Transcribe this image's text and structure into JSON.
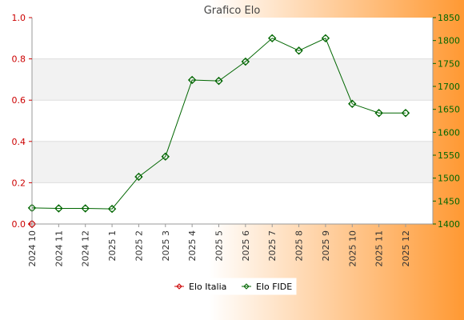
{
  "colors": {
    "left_axis": "#cc0000",
    "right_axis": "#006600",
    "background_left": "#ffffff",
    "background_right": "#ff9933",
    "band": "#f2f2f2"
  },
  "chart_data": {
    "type": "line",
    "title": "Grafico Elo",
    "categories": [
      "2024 10",
      "2024 11",
      "2024 12",
      "2025 1",
      "2025 2",
      "2025 3",
      "2025 4",
      "2025 5",
      "2025 6",
      "2025 7",
      "2025 8",
      "2025 9",
      "2025 10",
      "2025 11",
      "2025 12"
    ],
    "y_left": {
      "ticks": [
        "0.0",
        "0.2",
        "0.4",
        "0.6",
        "0.8",
        "1.0"
      ],
      "range": [
        0,
        1
      ]
    },
    "y_right": {
      "ticks": [
        "1400",
        "1450",
        "1500",
        "1550",
        "1600",
        "1650",
        "1700",
        "1750",
        "1800",
        "1850"
      ],
      "range": [
        1400,
        1850
      ]
    },
    "grid": "horizontal alternating bands",
    "legend_position": "bottom",
    "series": [
      {
        "name": "Elo Italia",
        "axis": "left",
        "color": "#cc0000",
        "values": [
          0,
          null,
          null,
          null,
          null,
          null,
          null,
          null,
          null,
          null,
          null,
          null,
          null,
          null,
          null
        ]
      },
      {
        "name": "Elo FIDE",
        "axis": "right",
        "color": "#006600",
        "values": [
          1435,
          1434,
          1434,
          1433,
          1503,
          1547,
          1714,
          1712,
          1754,
          1805,
          1778,
          1805,
          1662,
          1642,
          1642
        ]
      }
    ]
  }
}
